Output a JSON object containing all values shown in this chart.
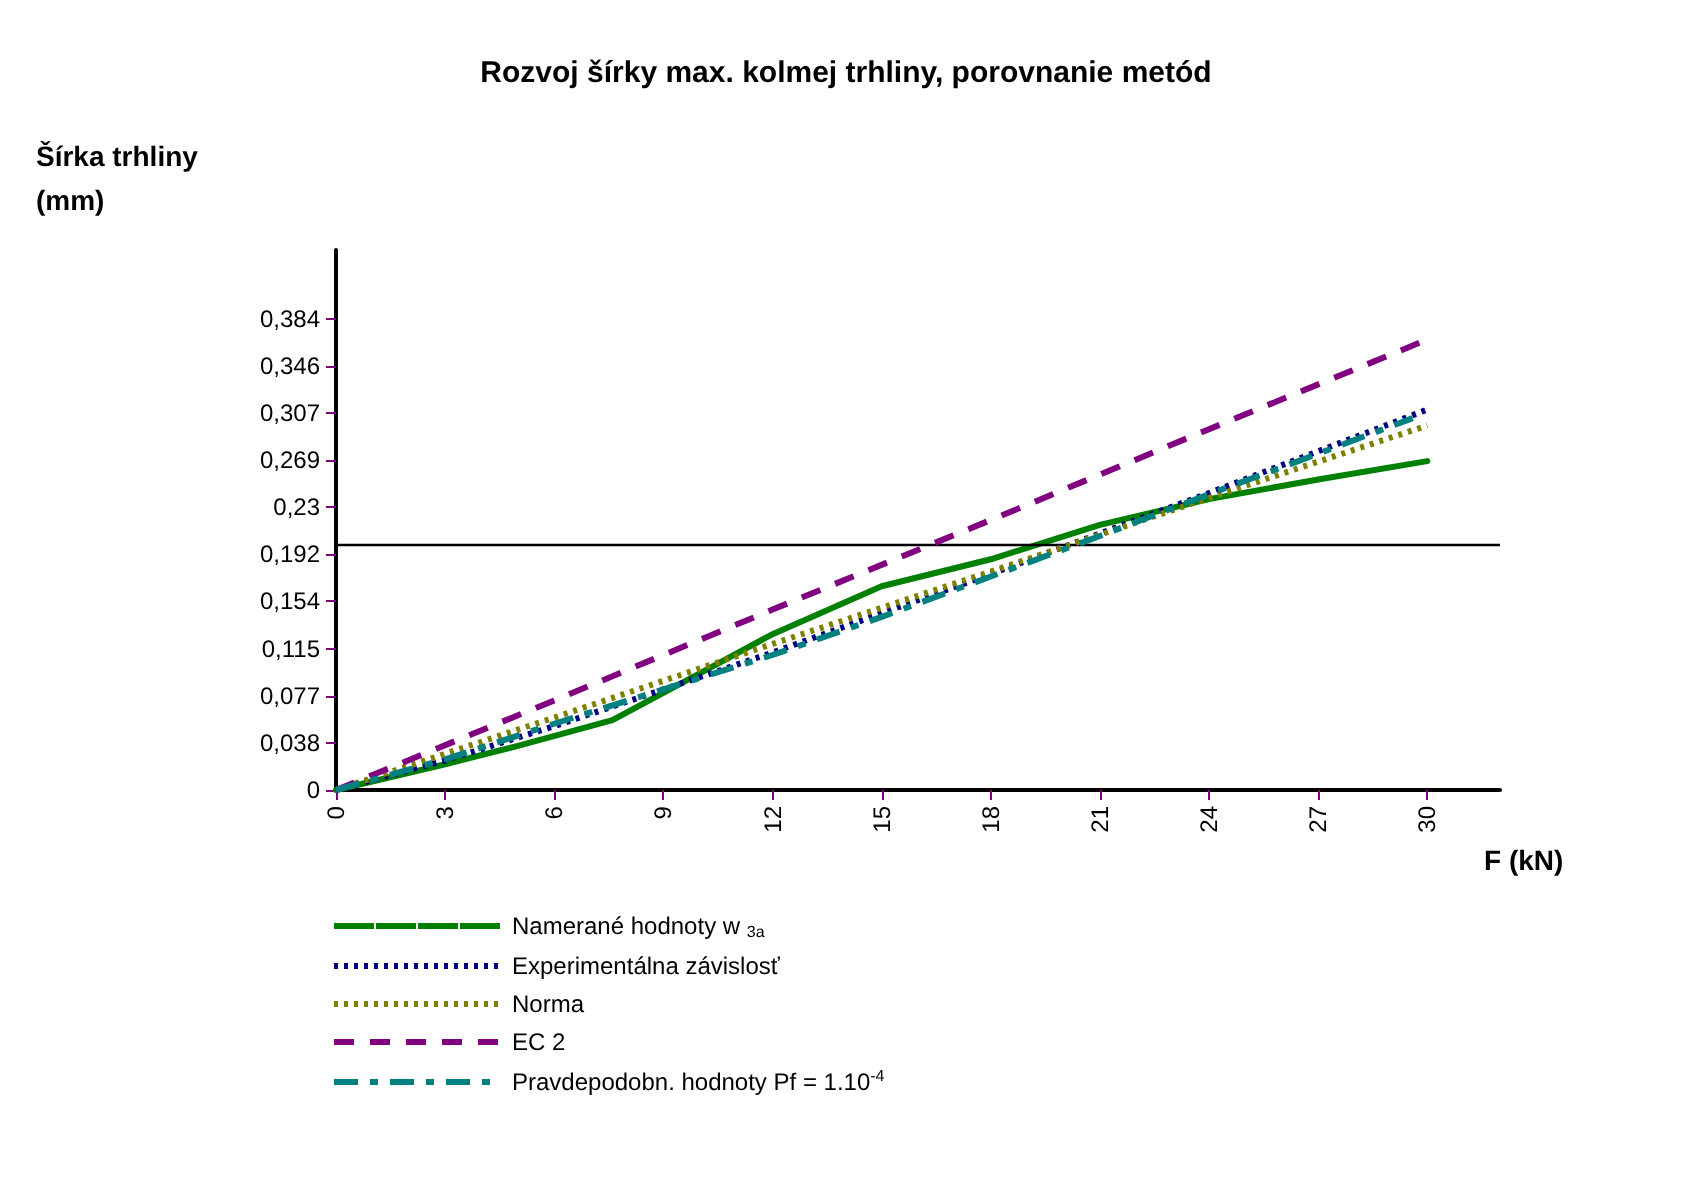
{
  "chart_data": {
    "type": "line",
    "title": "Rozvoj šírky max. kolmej trhliny, porovnanie metód",
    "xlabel": "F (kN)",
    "ylabel": "Šírka trhliny (mm)",
    "xlim": [
      0,
      32
    ],
    "xticks": [
      0,
      3,
      6,
      9,
      12,
      15,
      18,
      21,
      24,
      27,
      30
    ],
    "ylim": [
      0,
      0.44
    ],
    "yticks": [
      0,
      {
        "value": 0.0384,
        "label": "0,038"
      },
      {
        "value": 0.0768,
        "label": "0,077"
      },
      {
        "value": 0.1152,
        "label": "0,115"
      },
      {
        "value": 0.1536,
        "label": "0,154"
      },
      {
        "value": 0.192,
        "label": "0,192"
      },
      {
        "value": 0.2304,
        "label": "0,23"
      },
      {
        "value": 0.2688,
        "label": "0,269"
      },
      {
        "value": 0.3072,
        "label": "0,307"
      },
      {
        "value": 0.3456,
        "label": "0,346"
      },
      {
        "value": 0.384,
        "label": "0,384"
      }
    ],
    "grid": false,
    "legend": "bottom",
    "marker": "none",
    "ref_lines": [
      {
        "axis": "y",
        "value": 0.2,
        "color": "#000000",
        "line_style": "solid"
      }
    ],
    "series": [
      {
        "name": "Namerané hodnoty w $_{3a}$",
        "color": "#008000",
        "line_style": "solid",
        "x": [
          0,
          3,
          5,
          7.6,
          10,
          12,
          15,
          18,
          21,
          24,
          27,
          30
        ],
        "values": [
          0,
          0.021,
          0.036,
          0.057,
          0.095,
          0.127,
          0.166,
          0.188,
          0.216,
          0.237,
          0.253,
          0.268
        ]
      },
      {
        "name": "Experimentálna závislosť",
        "color": "#000080",
        "line_style": "dotted",
        "x": [
          0,
          3,
          6,
          9,
          12,
          15,
          18,
          21,
          24,
          27,
          30
        ],
        "values": [
          0,
          0.024,
          0.052,
          0.082,
          0.112,
          0.144,
          0.176,
          0.209,
          0.242,
          0.276,
          0.31
        ]
      },
      {
        "name": "Norma",
        "color": "#808000",
        "line_style": "dotted",
        "x": [
          0,
          6,
          12,
          18,
          24,
          30
        ],
        "values": [
          0,
          0.059,
          0.119,
          0.178,
          0.238,
          0.297
        ]
      },
      {
        "name": "EC 2",
        "color": "#800080",
        "line_style": "dashed",
        "x": [
          0,
          6,
          12,
          18,
          24,
          30
        ],
        "values": [
          0,
          0.073,
          0.147,
          0.22,
          0.294,
          0.367
        ]
      },
      {
        "name": "Pravdepodobn. hodnoty Pf = 1.10$^{-4}$",
        "color": "#008080",
        "line_style": "dashdot",
        "x": [
          0,
          3,
          6,
          9,
          12,
          15,
          18,
          21,
          24,
          27,
          29.6
        ],
        "values": [
          0,
          0.025,
          0.054,
          0.082,
          0.11,
          0.141,
          0.174,
          0.207,
          0.241,
          0.274,
          0.303
        ]
      }
    ]
  }
}
